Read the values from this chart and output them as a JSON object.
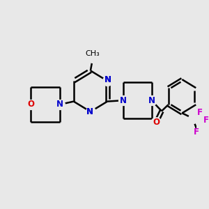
{
  "bg_color": "#e8e8e8",
  "bond_color": "#000000",
  "N_color": "#0000cc",
  "O_color": "#dd0000",
  "F_color": "#cc00cc",
  "line_width": 1.8,
  "font_size": 8.5,
  "fig_width": 3.0,
  "fig_height": 3.0,
  "xlim": [
    0,
    10
  ],
  "ylim": [
    0,
    10
  ]
}
